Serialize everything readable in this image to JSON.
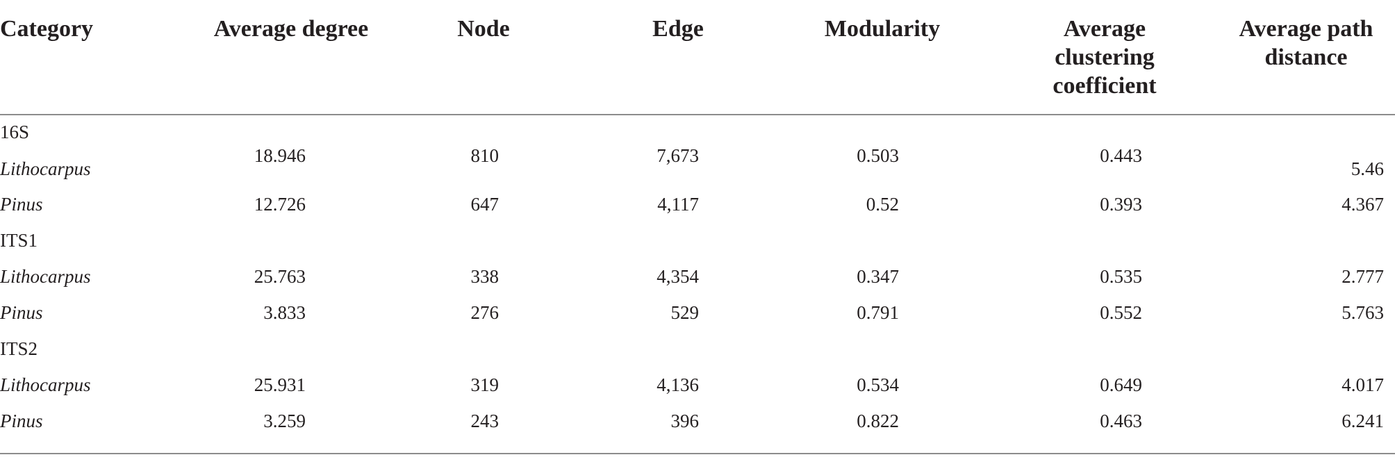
{
  "headers": {
    "category": "Category",
    "average_degree": "Average degree",
    "node": "Node",
    "edge": "Edge",
    "modularity": "Modularity",
    "avg_clustering": [
      "Average",
      "clustering",
      "coefficient"
    ],
    "avg_path": [
      "Average path",
      "distance"
    ]
  },
  "groups": [
    {
      "name": "16S",
      "rows": [
        {
          "label": "Lithocarpus",
          "average_degree": "18.946",
          "node": "810",
          "edge": "7,673",
          "modularity": "0.503",
          "clustering": "0.443",
          "path": "5.46"
        },
        {
          "label": "Pinus",
          "average_degree": "12.726",
          "node": "647",
          "edge": "4,117",
          "modularity": "0.52",
          "clustering": "0.393",
          "path": "4.367"
        }
      ]
    },
    {
      "name": "ITS1",
      "rows": [
        {
          "label": "Lithocarpus",
          "average_degree": "25.763",
          "node": "338",
          "edge": "4,354",
          "modularity": "0.347",
          "clustering": "0.535",
          "path": "2.777"
        },
        {
          "label": "Pinus",
          "average_degree": "3.833",
          "node": "276",
          "edge": "529",
          "modularity": "0.791",
          "clustering": "0.552",
          "path": "5.763"
        }
      ]
    },
    {
      "name": "ITS2",
      "rows": [
        {
          "label": "Lithocarpus",
          "average_degree": "25.931",
          "node": "319",
          "edge": "4,136",
          "modularity": "0.534",
          "clustering": "0.649",
          "path": "4.017"
        },
        {
          "label": "Pinus",
          "average_degree": "3.259",
          "node": "243",
          "edge": "396",
          "modularity": "0.822",
          "clustering": "0.463",
          "path": "6.241"
        }
      ]
    }
  ]
}
